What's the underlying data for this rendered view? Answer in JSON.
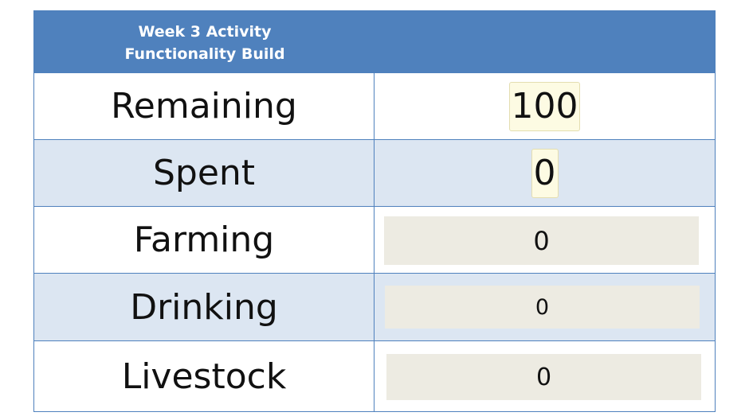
{
  "header": {
    "title_line1": "Week 3 Activity",
    "title_line2": "Functionality Build"
  },
  "rows": [
    {
      "label": "Remaining",
      "value": "100"
    },
    {
      "label": "Spent",
      "value": "0"
    },
    {
      "label": "Farming",
      "value": "0"
    },
    {
      "label": "Drinking",
      "value": "0"
    },
    {
      "label": "Livestock",
      "value": "0"
    }
  ],
  "colors": {
    "header_bg": "#4f81bd",
    "alt_row_bg": "#dce6f2",
    "border": "#4f81bd",
    "readout_bg": "#fdfbe3",
    "input_bg": "#edebe2"
  }
}
